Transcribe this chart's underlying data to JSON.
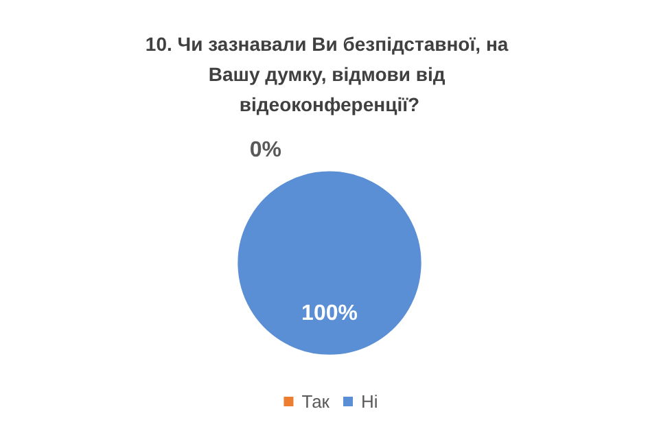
{
  "chart_data": {
    "type": "pie",
    "title": "10. Чи зазнавали Ви безпідставної, на Вашу думку, відмови від відеоконференції?",
    "categories": [
      "Так",
      "Ні"
    ],
    "values": [
      0,
      100
    ],
    "value_labels": [
      "0%",
      "100%"
    ],
    "colors": [
      "#ed7d31",
      "#5b8fd5"
    ],
    "legend": "bottom"
  }
}
